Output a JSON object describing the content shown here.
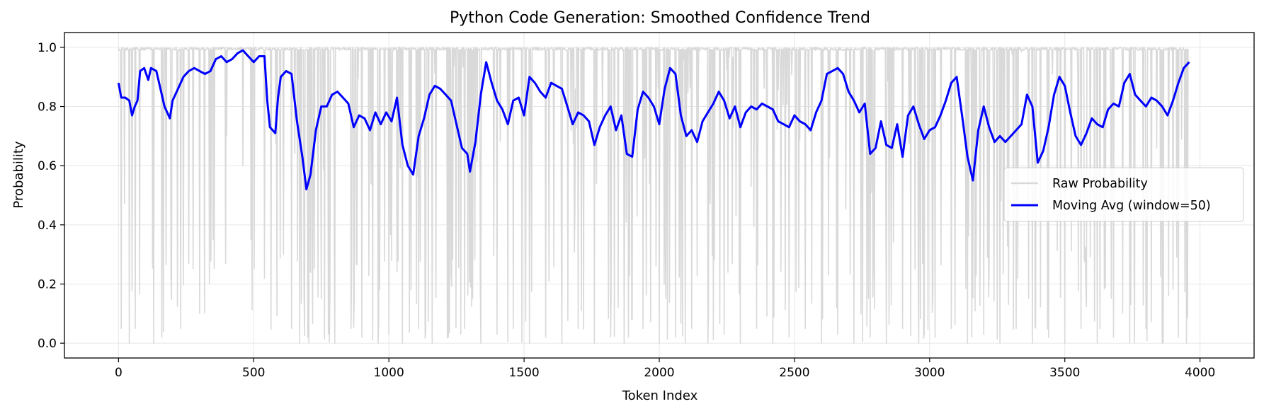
{
  "chart_data": {
    "type": "line",
    "title": "Python Code Generation: Smoothed Confidence Trend",
    "xlabel": "Token Index",
    "ylabel": "Probability",
    "xlim": [
      -200,
      4200
    ],
    "ylim": [
      -0.05,
      1.05
    ],
    "xticks": [
      0,
      500,
      1000,
      1500,
      2000,
      2500,
      3000,
      3500,
      4000
    ],
    "yticks": [
      0.0,
      0.2,
      0.4,
      0.6,
      0.8,
      1.0
    ],
    "grid": true,
    "legend_position": "center-right",
    "series": [
      {
        "name": "Raw Probability",
        "color": "#d9d9d9",
        "n_points": 3960,
        "ceiling": 1.0,
        "min": 0.0,
        "representative_dips": [
          [
            10,
            0.05
          ],
          [
            25,
            0.52
          ],
          [
            40,
            0.0
          ],
          [
            62,
            0.05
          ],
          [
            95,
            0.03
          ],
          [
            130,
            0.0
          ],
          [
            160,
            0.02
          ],
          [
            185,
            0.5
          ],
          [
            230,
            0.05
          ],
          [
            260,
            0.27
          ],
          [
            300,
            0.1
          ],
          [
            350,
            0.35
          ],
          [
            400,
            0.7
          ],
          [
            460,
            0.6
          ],
          [
            490,
            0.35
          ],
          [
            540,
            0.22
          ],
          [
            565,
            0.05
          ],
          [
            610,
            0.3
          ],
          [
            640,
            0.05
          ],
          [
            670,
            0.0
          ],
          [
            700,
            0.02
          ],
          [
            750,
            0.15
          ],
          [
            800,
            0.0
          ],
          [
            860,
            0.05
          ],
          [
            900,
            0.02
          ],
          [
            960,
            0.0
          ],
          [
            1000,
            0.03
          ],
          [
            1050,
            0.0
          ],
          [
            1110,
            0.05
          ],
          [
            1160,
            0.0
          ],
          [
            1220,
            0.02
          ],
          [
            1280,
            0.05
          ],
          [
            1340,
            0.0
          ],
          [
            1400,
            0.03
          ],
          [
            1460,
            0.05
          ],
          [
            1520,
            0.0
          ],
          [
            1580,
            0.02
          ],
          [
            1640,
            0.0
          ],
          [
            1700,
            0.05
          ],
          [
            1760,
            0.0
          ],
          [
            1820,
            0.02
          ],
          [
            1870,
            0.0
          ],
          [
            1940,
            0.05
          ],
          [
            2000,
            0.0
          ],
          [
            2060,
            0.02
          ],
          [
            2120,
            0.05
          ],
          [
            2180,
            0.0
          ],
          [
            2240,
            0.03
          ],
          [
            2300,
            0.0
          ],
          [
            2360,
            0.05
          ],
          [
            2420,
            0.0
          ],
          [
            2480,
            0.02
          ],
          [
            2540,
            0.05
          ],
          [
            2600,
            0.0
          ],
          [
            2660,
            0.03
          ],
          [
            2720,
            0.0
          ],
          [
            2780,
            0.02
          ],
          [
            2840,
            0.0
          ],
          [
            2900,
            0.05
          ],
          [
            2960,
            0.0
          ],
          [
            3020,
            0.02
          ],
          [
            3080,
            0.05
          ],
          [
            3140,
            0.0
          ],
          [
            3200,
            0.03
          ],
          [
            3260,
            0.0
          ],
          [
            3320,
            0.05
          ],
          [
            3380,
            0.0
          ],
          [
            3440,
            0.02
          ],
          [
            3500,
            0.0
          ],
          [
            3560,
            0.05
          ],
          [
            3620,
            0.0
          ],
          [
            3680,
            0.02
          ],
          [
            3740,
            0.0
          ],
          [
            3800,
            0.05
          ],
          [
            3860,
            0.0
          ],
          [
            3920,
            0.02
          ],
          [
            3950,
            0.0
          ]
        ]
      },
      {
        "name": "Moving Avg (window=50)",
        "color": "#0000ff",
        "points": [
          [
            0,
            0.88
          ],
          [
            10,
            0.83
          ],
          [
            25,
            0.83
          ],
          [
            40,
            0.82
          ],
          [
            50,
            0.77
          ],
          [
            60,
            0.8
          ],
          [
            70,
            0.82
          ],
          [
            80,
            0.92
          ],
          [
            95,
            0.93
          ],
          [
            110,
            0.89
          ],
          [
            120,
            0.93
          ],
          [
            140,
            0.92
          ],
          [
            160,
            0.84
          ],
          [
            170,
            0.8
          ],
          [
            180,
            0.78
          ],
          [
            190,
            0.76
          ],
          [
            200,
            0.82
          ],
          [
            220,
            0.86
          ],
          [
            240,
            0.9
          ],
          [
            260,
            0.92
          ],
          [
            280,
            0.93
          ],
          [
            300,
            0.92
          ],
          [
            320,
            0.91
          ],
          [
            340,
            0.92
          ],
          [
            360,
            0.96
          ],
          [
            380,
            0.97
          ],
          [
            400,
            0.95
          ],
          [
            420,
            0.96
          ],
          [
            440,
            0.98
          ],
          [
            460,
            0.99
          ],
          [
            480,
            0.97
          ],
          [
            500,
            0.95
          ],
          [
            520,
            0.97
          ],
          [
            540,
            0.97
          ],
          [
            550,
            0.82
          ],
          [
            560,
            0.73
          ],
          [
            570,
            0.72
          ],
          [
            580,
            0.71
          ],
          [
            590,
            0.83
          ],
          [
            600,
            0.9
          ],
          [
            620,
            0.92
          ],
          [
            640,
            0.91
          ],
          [
            660,
            0.75
          ],
          [
            680,
            0.63
          ],
          [
            695,
            0.52
          ],
          [
            710,
            0.57
          ],
          [
            730,
            0.72
          ],
          [
            750,
            0.8
          ],
          [
            770,
            0.8
          ],
          [
            790,
            0.84
          ],
          [
            810,
            0.85
          ],
          [
            830,
            0.83
          ],
          [
            850,
            0.81
          ],
          [
            870,
            0.73
          ],
          [
            890,
            0.77
          ],
          [
            910,
            0.76
          ],
          [
            930,
            0.72
          ],
          [
            950,
            0.78
          ],
          [
            970,
            0.74
          ],
          [
            990,
            0.78
          ],
          [
            1010,
            0.75
          ],
          [
            1030,
            0.83
          ],
          [
            1050,
            0.67
          ],
          [
            1070,
            0.6
          ],
          [
            1090,
            0.57
          ],
          [
            1110,
            0.7
          ],
          [
            1130,
            0.76
          ],
          [
            1150,
            0.84
          ],
          [
            1170,
            0.87
          ],
          [
            1190,
            0.86
          ],
          [
            1210,
            0.84
          ],
          [
            1230,
            0.82
          ],
          [
            1250,
            0.74
          ],
          [
            1270,
            0.66
          ],
          [
            1290,
            0.64
          ],
          [
            1300,
            0.58
          ],
          [
            1320,
            0.68
          ],
          [
            1340,
            0.84
          ],
          [
            1360,
            0.95
          ],
          [
            1380,
            0.88
          ],
          [
            1400,
            0.82
          ],
          [
            1420,
            0.79
          ],
          [
            1440,
            0.74
          ],
          [
            1460,
            0.82
          ],
          [
            1480,
            0.83
          ],
          [
            1500,
            0.77
          ],
          [
            1520,
            0.9
          ],
          [
            1540,
            0.88
          ],
          [
            1560,
            0.85
          ],
          [
            1580,
            0.83
          ],
          [
            1600,
            0.88
          ],
          [
            1620,
            0.87
          ],
          [
            1640,
            0.86
          ],
          [
            1660,
            0.8
          ],
          [
            1680,
            0.74
          ],
          [
            1700,
            0.78
          ],
          [
            1720,
            0.77
          ],
          [
            1740,
            0.75
          ],
          [
            1760,
            0.67
          ],
          [
            1780,
            0.73
          ],
          [
            1800,
            0.77
          ],
          [
            1820,
            0.8
          ],
          [
            1840,
            0.72
          ],
          [
            1860,
            0.77
          ],
          [
            1880,
            0.64
          ],
          [
            1900,
            0.63
          ],
          [
            1920,
            0.79
          ],
          [
            1940,
            0.85
          ],
          [
            1960,
            0.83
          ],
          [
            1980,
            0.8
          ],
          [
            2000,
            0.74
          ],
          [
            2020,
            0.86
          ],
          [
            2040,
            0.93
          ],
          [
            2060,
            0.91
          ],
          [
            2080,
            0.77
          ],
          [
            2100,
            0.7
          ],
          [
            2120,
            0.72
          ],
          [
            2140,
            0.68
          ],
          [
            2160,
            0.75
          ],
          [
            2180,
            0.78
          ],
          [
            2200,
            0.81
          ],
          [
            2220,
            0.85
          ],
          [
            2240,
            0.82
          ],
          [
            2260,
            0.76
          ],
          [
            2280,
            0.8
          ],
          [
            2300,
            0.73
          ],
          [
            2320,
            0.78
          ],
          [
            2340,
            0.8
          ],
          [
            2360,
            0.79
          ],
          [
            2380,
            0.81
          ],
          [
            2400,
            0.8
          ],
          [
            2420,
            0.79
          ],
          [
            2440,
            0.75
          ],
          [
            2460,
            0.74
          ],
          [
            2480,
            0.73
          ],
          [
            2500,
            0.77
          ],
          [
            2520,
            0.75
          ],
          [
            2540,
            0.74
          ],
          [
            2560,
            0.72
          ],
          [
            2580,
            0.78
          ],
          [
            2600,
            0.82
          ],
          [
            2620,
            0.91
          ],
          [
            2640,
            0.92
          ],
          [
            2660,
            0.93
          ],
          [
            2680,
            0.91
          ],
          [
            2700,
            0.85
          ],
          [
            2720,
            0.82
          ],
          [
            2740,
            0.78
          ],
          [
            2760,
            0.81
          ],
          [
            2780,
            0.64
          ],
          [
            2800,
            0.66
          ],
          [
            2820,
            0.75
          ],
          [
            2840,
            0.67
          ],
          [
            2860,
            0.66
          ],
          [
            2880,
            0.74
          ],
          [
            2900,
            0.63
          ],
          [
            2920,
            0.77
          ],
          [
            2940,
            0.8
          ],
          [
            2960,
            0.74
          ],
          [
            2980,
            0.69
          ],
          [
            3000,
            0.72
          ],
          [
            3020,
            0.73
          ],
          [
            3040,
            0.77
          ],
          [
            3060,
            0.82
          ],
          [
            3080,
            0.88
          ],
          [
            3100,
            0.9
          ],
          [
            3120,
            0.77
          ],
          [
            3140,
            0.63
          ],
          [
            3160,
            0.55
          ],
          [
            3180,
            0.72
          ],
          [
            3200,
            0.8
          ],
          [
            3220,
            0.73
          ],
          [
            3240,
            0.68
          ],
          [
            3260,
            0.7
          ],
          [
            3280,
            0.68
          ],
          [
            3300,
            0.7
          ],
          [
            3320,
            0.72
          ],
          [
            3340,
            0.74
          ],
          [
            3360,
            0.84
          ],
          [
            3380,
            0.8
          ],
          [
            3400,
            0.61
          ],
          [
            3420,
            0.65
          ],
          [
            3440,
            0.73
          ],
          [
            3460,
            0.84
          ],
          [
            3480,
            0.9
          ],
          [
            3500,
            0.87
          ],
          [
            3520,
            0.78
          ],
          [
            3540,
            0.7
          ],
          [
            3560,
            0.67
          ],
          [
            3580,
            0.71
          ],
          [
            3600,
            0.76
          ],
          [
            3620,
            0.74
          ],
          [
            3640,
            0.73
          ],
          [
            3660,
            0.79
          ],
          [
            3680,
            0.81
          ],
          [
            3700,
            0.8
          ],
          [
            3720,
            0.88
          ],
          [
            3740,
            0.91
          ],
          [
            3760,
            0.84
          ],
          [
            3780,
            0.82
          ],
          [
            3800,
            0.8
          ],
          [
            3820,
            0.83
          ],
          [
            3840,
            0.82
          ],
          [
            3860,
            0.8
          ],
          [
            3880,
            0.77
          ],
          [
            3900,
            0.82
          ],
          [
            3920,
            0.88
          ],
          [
            3940,
            0.93
          ],
          [
            3960,
            0.95
          ]
        ]
      }
    ]
  }
}
